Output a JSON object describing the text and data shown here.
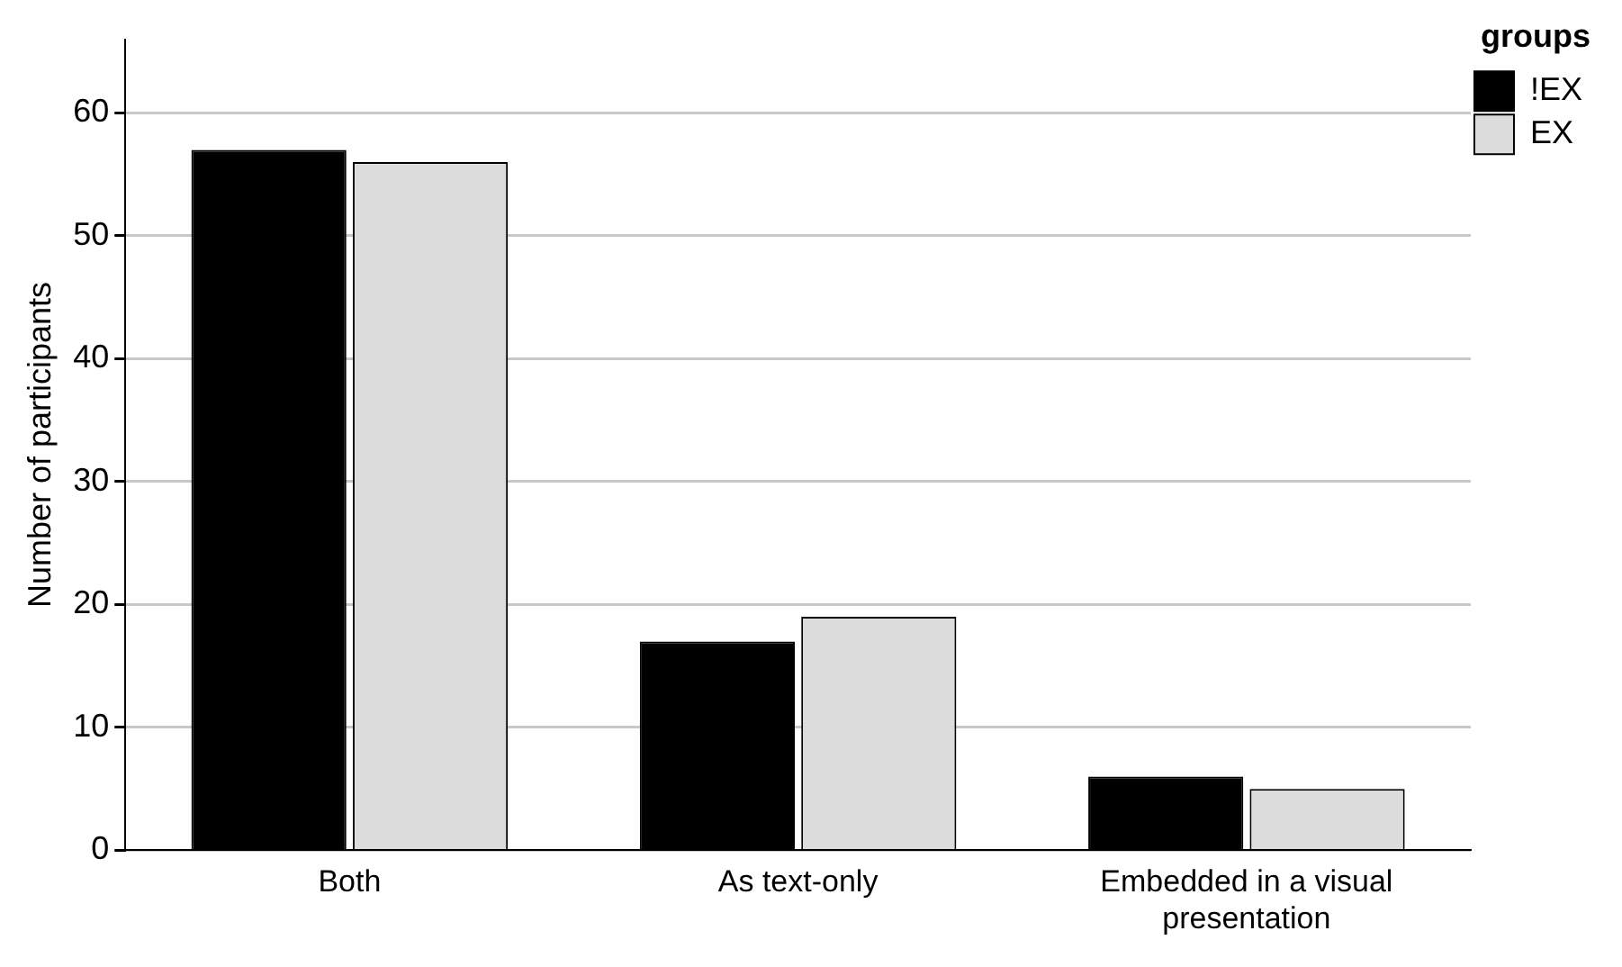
{
  "chart_data": {
    "type": "bar",
    "ylabel": "Number of participants",
    "legend_title": "groups",
    "categories": [
      "Both",
      "As text-only",
      "Embedded in a visual presentation"
    ],
    "series": [
      {
        "name": "!EX",
        "color": "#000000",
        "values": [
          57,
          17,
          6
        ]
      },
      {
        "name": "EX",
        "color": "#dcdcdc",
        "values": [
          56,
          19,
          5
        ]
      }
    ],
    "ylim": [
      0,
      66
    ],
    "yticks": [
      0,
      10,
      20,
      30,
      40,
      50,
      60
    ],
    "grid": "y",
    "legend": "top right"
  }
}
